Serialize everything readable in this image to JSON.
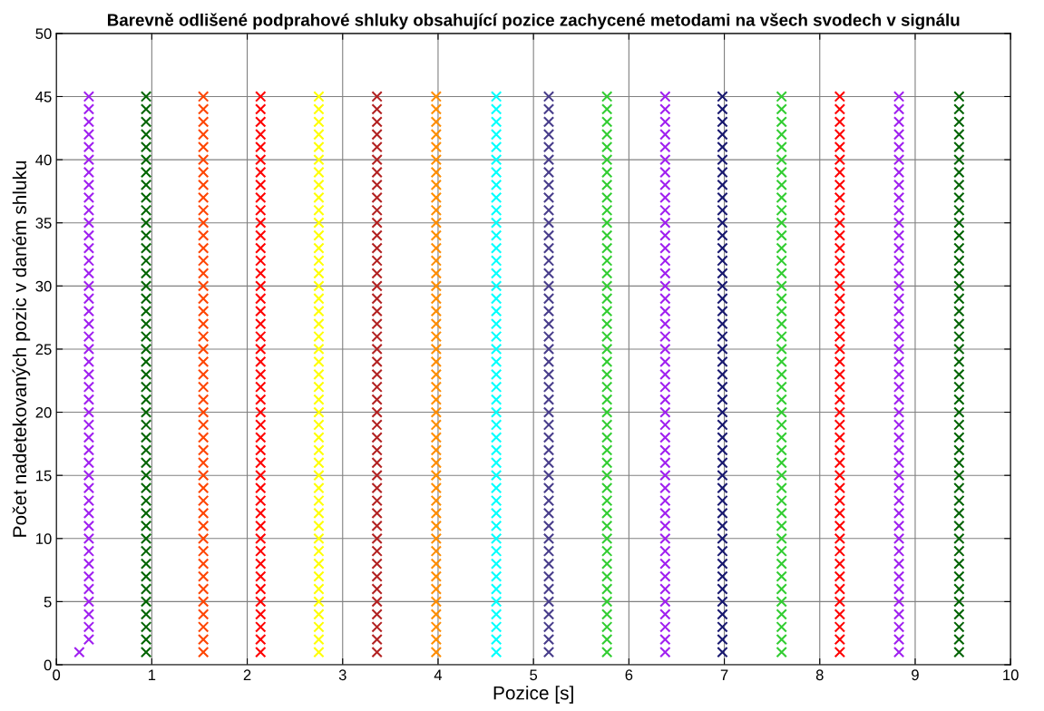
{
  "chart_data": {
    "type": "scatter",
    "title": "Barevně odlišené podprahové shluky obsahující pozice zachycené metodami na všech svodech v signálu",
    "xlabel": "Pozice [s]",
    "ylabel": "Počet nadetekovaných pozic v daném shluku",
    "xlim": [
      0,
      10
    ],
    "ylim": [
      0,
      50
    ],
    "xticks": [
      0,
      1,
      2,
      3,
      4,
      5,
      6,
      7,
      8,
      9,
      10
    ],
    "yticks": [
      0,
      5,
      10,
      15,
      20,
      25,
      30,
      35,
      40,
      45,
      50
    ],
    "grid": true,
    "marker": "cross",
    "series": [
      {
        "color": "#a020f0",
        "x": [
          0.24,
          0.34,
          0.34,
          0.34,
          0.34,
          0.34,
          0.34,
          0.34,
          0.34,
          0.34,
          0.34,
          0.34,
          0.34,
          0.34,
          0.34,
          0.34,
          0.34,
          0.34,
          0.34,
          0.34,
          0.34,
          0.34,
          0.34,
          0.34,
          0.34,
          0.34,
          0.34,
          0.34,
          0.34,
          0.34,
          0.34,
          0.34,
          0.34,
          0.34,
          0.34,
          0.34,
          0.34,
          0.34,
          0.34,
          0.34,
          0.34,
          0.34,
          0.34,
          0.34,
          0.34
        ],
        "values": [
          1,
          2,
          3,
          4,
          5,
          6,
          7,
          8,
          9,
          10,
          11,
          12,
          13,
          14,
          15,
          16,
          17,
          18,
          19,
          20,
          21,
          22,
          23,
          24,
          25,
          26,
          27,
          28,
          29,
          30,
          31,
          32,
          33,
          34,
          35,
          36,
          37,
          38,
          39,
          40,
          41,
          42,
          43,
          44,
          45
        ]
      },
      {
        "color": "#006400",
        "x": [
          0.94,
          0.94,
          0.94,
          0.94,
          0.94,
          0.94,
          0.94,
          0.94,
          0.94,
          0.94,
          0.94,
          0.94,
          0.94,
          0.94,
          0.94,
          0.94,
          0.94,
          0.94,
          0.94,
          0.94,
          0.94,
          0.94,
          0.94,
          0.94,
          0.94,
          0.94,
          0.94,
          0.94,
          0.94,
          0.94,
          0.94,
          0.94,
          0.94,
          0.94,
          0.94,
          0.94,
          0.94,
          0.94,
          0.94,
          0.94,
          0.94,
          0.94,
          0.94,
          0.94,
          0.94
        ],
        "values": [
          1,
          2,
          3,
          4,
          5,
          6,
          7,
          8,
          9,
          10,
          11,
          12,
          13,
          14,
          15,
          16,
          17,
          18,
          19,
          20,
          21,
          22,
          23,
          24,
          25,
          26,
          27,
          28,
          29,
          30,
          31,
          32,
          33,
          34,
          35,
          36,
          37,
          38,
          39,
          40,
          41,
          42,
          43,
          44,
          45
        ]
      },
      {
        "color": "#ff4500",
        "x": [
          1.54,
          1.54,
          1.54,
          1.54,
          1.54,
          1.54,
          1.54,
          1.54,
          1.54,
          1.54,
          1.54,
          1.54,
          1.54,
          1.54,
          1.54,
          1.54,
          1.54,
          1.54,
          1.54,
          1.54,
          1.54,
          1.54,
          1.54,
          1.54,
          1.54,
          1.54,
          1.54,
          1.54,
          1.54,
          1.54,
          1.54,
          1.54,
          1.54,
          1.54,
          1.54,
          1.54,
          1.54,
          1.54,
          1.54,
          1.54,
          1.54,
          1.54,
          1.54,
          1.54,
          1.54
        ],
        "values": [
          1,
          2,
          3,
          4,
          5,
          6,
          7,
          8,
          9,
          10,
          11,
          12,
          13,
          14,
          15,
          16,
          17,
          18,
          19,
          20,
          21,
          22,
          23,
          24,
          25,
          26,
          27,
          28,
          29,
          30,
          31,
          32,
          33,
          34,
          35,
          36,
          37,
          38,
          39,
          40,
          41,
          42,
          43,
          44,
          45
        ]
      },
      {
        "color": "#ff0000",
        "x": [
          2.14,
          2.14,
          2.14,
          2.14,
          2.14,
          2.14,
          2.14,
          2.14,
          2.14,
          2.14,
          2.14,
          2.14,
          2.14,
          2.14,
          2.14,
          2.14,
          2.14,
          2.14,
          2.14,
          2.14,
          2.14,
          2.14,
          2.14,
          2.14,
          2.14,
          2.14,
          2.14,
          2.14,
          2.14,
          2.14,
          2.14,
          2.14,
          2.14,
          2.14,
          2.14,
          2.14,
          2.14,
          2.14,
          2.14,
          2.14,
          2.14,
          2.14,
          2.14,
          2.14,
          2.14
        ],
        "values": [
          1,
          2,
          3,
          4,
          5,
          6,
          7,
          8,
          9,
          10,
          11,
          12,
          13,
          14,
          15,
          16,
          17,
          18,
          19,
          20,
          21,
          22,
          23,
          24,
          25,
          26,
          27,
          28,
          29,
          30,
          31,
          32,
          33,
          34,
          35,
          36,
          37,
          38,
          39,
          40,
          41,
          42,
          43,
          44,
          45
        ]
      },
      {
        "color": "#ffff00",
        "x": [
          2.75,
          2.75,
          2.75,
          2.75,
          2.75,
          2.75,
          2.75,
          2.75,
          2.75,
          2.75,
          2.75,
          2.75,
          2.75,
          2.75,
          2.75,
          2.75,
          2.75,
          2.75,
          2.75,
          2.75,
          2.75,
          2.75,
          2.75,
          2.75,
          2.75,
          2.75,
          2.75,
          2.75,
          2.75,
          2.75,
          2.75,
          2.75,
          2.75,
          2.75,
          2.75,
          2.75,
          2.75,
          2.75,
          2.75,
          2.75,
          2.75,
          2.75,
          2.75,
          2.75,
          2.75
        ],
        "values": [
          1,
          2,
          3,
          4,
          5,
          6,
          7,
          8,
          9,
          10,
          11,
          12,
          13,
          14,
          15,
          16,
          17,
          18,
          19,
          20,
          21,
          22,
          23,
          24,
          25,
          26,
          27,
          28,
          29,
          30,
          31,
          32,
          33,
          34,
          35,
          36,
          37,
          38,
          39,
          40,
          41,
          42,
          43,
          44,
          45
        ]
      },
      {
        "color": "#b22222",
        "x": [
          3.36,
          3.36,
          3.36,
          3.36,
          3.36,
          3.36,
          3.36,
          3.36,
          3.36,
          3.36,
          3.36,
          3.36,
          3.36,
          3.36,
          3.36,
          3.36,
          3.36,
          3.36,
          3.36,
          3.36,
          3.36,
          3.36,
          3.36,
          3.36,
          3.36,
          3.36,
          3.36,
          3.36,
          3.36,
          3.36,
          3.36,
          3.36,
          3.36,
          3.36,
          3.36,
          3.36,
          3.36,
          3.36,
          3.36,
          3.36,
          3.36,
          3.36,
          3.36,
          3.36,
          3.36
        ],
        "values": [
          1,
          2,
          3,
          4,
          5,
          6,
          7,
          8,
          9,
          10,
          11,
          12,
          13,
          14,
          15,
          16,
          17,
          18,
          19,
          20,
          21,
          22,
          23,
          24,
          25,
          26,
          27,
          28,
          29,
          30,
          31,
          32,
          33,
          34,
          35,
          36,
          37,
          38,
          39,
          40,
          41,
          42,
          43,
          44,
          45
        ]
      },
      {
        "color": "#ff8c00",
        "x": [
          3.98,
          3.98,
          3.98,
          3.98,
          3.98,
          3.98,
          3.98,
          3.98,
          3.98,
          3.98,
          3.98,
          3.98,
          3.98,
          3.98,
          3.98,
          3.98,
          3.98,
          3.98,
          3.98,
          3.98,
          3.98,
          3.98,
          3.98,
          3.98,
          3.98,
          3.98,
          3.98,
          3.98,
          3.98,
          3.98,
          3.98,
          3.98,
          3.98,
          3.98,
          3.98,
          3.98,
          3.98,
          3.98,
          3.98,
          3.98,
          3.98,
          3.98,
          3.98,
          3.98,
          3.98
        ],
        "values": [
          1,
          2,
          3,
          4,
          5,
          6,
          7,
          8,
          9,
          10,
          11,
          12,
          13,
          14,
          15,
          16,
          17,
          18,
          19,
          20,
          21,
          22,
          23,
          24,
          25,
          26,
          27,
          28,
          29,
          30,
          31,
          32,
          33,
          34,
          35,
          36,
          37,
          38,
          39,
          40,
          41,
          42,
          43,
          44,
          45
        ]
      },
      {
        "color": "#00ffff",
        "x": [
          4.61,
          4.61,
          4.61,
          4.61,
          4.61,
          4.61,
          4.61,
          4.61,
          4.61,
          4.61,
          4.61,
          4.61,
          4.61,
          4.61,
          4.61,
          4.61,
          4.61,
          4.61,
          4.61,
          4.61,
          4.61,
          4.61,
          4.61,
          4.61,
          4.61,
          4.61,
          4.61,
          4.61,
          4.61,
          4.61,
          4.61,
          4.61,
          4.61,
          4.61,
          4.61,
          4.61,
          4.61,
          4.61,
          4.61,
          4.61,
          4.61,
          4.61,
          4.61,
          4.61,
          4.61
        ],
        "values": [
          1,
          2,
          3,
          4,
          5,
          6,
          7,
          8,
          9,
          10,
          11,
          12,
          13,
          14,
          15,
          16,
          17,
          18,
          19,
          20,
          21,
          22,
          23,
          24,
          25,
          26,
          27,
          28,
          29,
          30,
          31,
          32,
          33,
          34,
          35,
          36,
          37,
          38,
          39,
          40,
          41,
          42,
          43,
          44,
          45
        ]
      },
      {
        "color": "#483d8b",
        "x": [
          5.16,
          5.16,
          5.16,
          5.16,
          5.16,
          5.16,
          5.16,
          5.16,
          5.16,
          5.16,
          5.16,
          5.16,
          5.16,
          5.16,
          5.16,
          5.16,
          5.16,
          5.16,
          5.16,
          5.16,
          5.16,
          5.16,
          5.16,
          5.16,
          5.16,
          5.16,
          5.16,
          5.16,
          5.16,
          5.16,
          5.16,
          5.16,
          5.16,
          5.16,
          5.16,
          5.16,
          5.16,
          5.16,
          5.16,
          5.16,
          5.16,
          5.16,
          5.16,
          5.16,
          5.16
        ],
        "values": [
          1,
          2,
          3,
          4,
          5,
          6,
          7,
          8,
          9,
          10,
          11,
          12,
          13,
          14,
          15,
          16,
          17,
          18,
          19,
          20,
          21,
          22,
          23,
          24,
          25,
          26,
          27,
          28,
          29,
          30,
          31,
          32,
          33,
          34,
          35,
          36,
          37,
          38,
          39,
          40,
          41,
          42,
          43,
          44,
          45
        ]
      },
      {
        "color": "#32cd32",
        "x": [
          5.77,
          5.77,
          5.77,
          5.77,
          5.77,
          5.77,
          5.77,
          5.77,
          5.77,
          5.77,
          5.77,
          5.77,
          5.77,
          5.77,
          5.77,
          5.77,
          5.77,
          5.77,
          5.77,
          5.77,
          5.77,
          5.77,
          5.77,
          5.77,
          5.77,
          5.77,
          5.77,
          5.77,
          5.77,
          5.77,
          5.77,
          5.77,
          5.77,
          5.77,
          5.77,
          5.77,
          5.77,
          5.77,
          5.77,
          5.77,
          5.77,
          5.77,
          5.77,
          5.77,
          5.77
        ],
        "values": [
          1,
          2,
          3,
          4,
          5,
          6,
          7,
          8,
          9,
          10,
          11,
          12,
          13,
          14,
          15,
          16,
          17,
          18,
          19,
          20,
          21,
          22,
          23,
          24,
          25,
          26,
          27,
          28,
          29,
          30,
          31,
          32,
          33,
          34,
          35,
          36,
          37,
          38,
          39,
          40,
          41,
          42,
          43,
          44,
          45
        ]
      },
      {
        "color": "#a020f0",
        "x": [
          6.38,
          6.38,
          6.38,
          6.38,
          6.38,
          6.38,
          6.38,
          6.38,
          6.38,
          6.38,
          6.38,
          6.38,
          6.38,
          6.38,
          6.38,
          6.38,
          6.38,
          6.38,
          6.38,
          6.38,
          6.38,
          6.38,
          6.38,
          6.38,
          6.38,
          6.38,
          6.38,
          6.38,
          6.38,
          6.38,
          6.38,
          6.38,
          6.38,
          6.38,
          6.38,
          6.38,
          6.38,
          6.38,
          6.38,
          6.38,
          6.38,
          6.38,
          6.38,
          6.38,
          6.38
        ],
        "values": [
          1,
          2,
          3,
          4,
          5,
          6,
          7,
          8,
          9,
          10,
          11,
          12,
          13,
          14,
          15,
          16,
          17,
          18,
          19,
          20,
          21,
          22,
          23,
          24,
          25,
          26,
          27,
          28,
          29,
          30,
          31,
          32,
          33,
          34,
          35,
          36,
          37,
          38,
          39,
          40,
          41,
          42,
          43,
          44,
          45
        ]
      },
      {
        "color": "#191970",
        "x": [
          6.98,
          6.98,
          6.98,
          6.98,
          6.98,
          6.98,
          6.98,
          6.98,
          6.98,
          6.98,
          6.98,
          6.98,
          6.98,
          6.98,
          6.98,
          6.98,
          6.98,
          6.98,
          6.98,
          6.98,
          6.98,
          6.98,
          6.98,
          6.98,
          6.98,
          6.98,
          6.98,
          6.98,
          6.98,
          6.98,
          6.98,
          6.98,
          6.98,
          6.98,
          6.98,
          6.98,
          6.98,
          6.98,
          6.98,
          6.98,
          6.98,
          6.98,
          6.98,
          6.98,
          6.98
        ],
        "values": [
          1,
          2,
          3,
          4,
          5,
          6,
          7,
          8,
          9,
          10,
          11,
          12,
          13,
          14,
          15,
          16,
          17,
          18,
          19,
          20,
          21,
          22,
          23,
          24,
          25,
          26,
          27,
          28,
          29,
          30,
          31,
          32,
          33,
          34,
          35,
          36,
          37,
          38,
          39,
          40,
          41,
          42,
          43,
          44,
          45
        ]
      },
      {
        "color": "#32cd32",
        "x": [
          7.6,
          7.6,
          7.6,
          7.6,
          7.6,
          7.6,
          7.6,
          7.6,
          7.6,
          7.6,
          7.6,
          7.6,
          7.6,
          7.6,
          7.6,
          7.6,
          7.6,
          7.6,
          7.6,
          7.6,
          7.6,
          7.6,
          7.6,
          7.6,
          7.6,
          7.6,
          7.6,
          7.6,
          7.6,
          7.6,
          7.6,
          7.6,
          7.6,
          7.6,
          7.6,
          7.6,
          7.6,
          7.6,
          7.6,
          7.6,
          7.6,
          7.6,
          7.6,
          7.6,
          7.6
        ],
        "values": [
          1,
          2,
          3,
          4,
          5,
          6,
          7,
          8,
          9,
          10,
          11,
          12,
          13,
          14,
          15,
          16,
          17,
          18,
          19,
          20,
          21,
          22,
          23,
          24,
          25,
          26,
          27,
          28,
          29,
          30,
          31,
          32,
          33,
          34,
          35,
          36,
          37,
          38,
          39,
          40,
          41,
          42,
          43,
          44,
          45
        ]
      },
      {
        "color": "#ff0000",
        "x": [
          8.21,
          8.21,
          8.21,
          8.21,
          8.21,
          8.21,
          8.21,
          8.21,
          8.21,
          8.21,
          8.21,
          8.21,
          8.21,
          8.21,
          8.21,
          8.21,
          8.21,
          8.21,
          8.21,
          8.21,
          8.21,
          8.21,
          8.21,
          8.21,
          8.21,
          8.21,
          8.21,
          8.21,
          8.21,
          8.21,
          8.21,
          8.21,
          8.21,
          8.21,
          8.21,
          8.21,
          8.21,
          8.21,
          8.21,
          8.21,
          8.21,
          8.21,
          8.21,
          8.21,
          8.21
        ],
        "values": [
          1,
          2,
          3,
          4,
          5,
          6,
          7,
          8,
          9,
          10,
          11,
          12,
          13,
          14,
          15,
          16,
          17,
          18,
          19,
          20,
          21,
          22,
          23,
          24,
          25,
          26,
          27,
          28,
          29,
          30,
          31,
          32,
          33,
          34,
          35,
          36,
          37,
          38,
          39,
          40,
          41,
          42,
          43,
          44,
          45
        ]
      },
      {
        "color": "#a020f0",
        "x": [
          8.83,
          8.83,
          8.83,
          8.83,
          8.83,
          8.83,
          8.83,
          8.83,
          8.83,
          8.83,
          8.83,
          8.83,
          8.83,
          8.83,
          8.83,
          8.83,
          8.83,
          8.83,
          8.83,
          8.83,
          8.83,
          8.83,
          8.83,
          8.83,
          8.83,
          8.83,
          8.83,
          8.83,
          8.83,
          8.83,
          8.83,
          8.83,
          8.83,
          8.83,
          8.83,
          8.83,
          8.83,
          8.83,
          8.83,
          8.83,
          8.83,
          8.83,
          8.83,
          8.83,
          8.83
        ],
        "values": [
          1,
          2,
          3,
          4,
          5,
          6,
          7,
          8,
          9,
          10,
          11,
          12,
          13,
          14,
          15,
          16,
          17,
          18,
          19,
          20,
          21,
          22,
          23,
          24,
          25,
          26,
          27,
          28,
          29,
          30,
          31,
          32,
          33,
          34,
          35,
          36,
          37,
          38,
          39,
          40,
          41,
          42,
          43,
          44,
          45
        ]
      },
      {
        "color": "#006400",
        "x": [
          9.46,
          9.46,
          9.46,
          9.46,
          9.46,
          9.46,
          9.46,
          9.46,
          9.46,
          9.46,
          9.46,
          9.46,
          9.46,
          9.46,
          9.46,
          9.46,
          9.46,
          9.46,
          9.46,
          9.46,
          9.46,
          9.46,
          9.46,
          9.46,
          9.46,
          9.46,
          9.46,
          9.46,
          9.46,
          9.46,
          9.46,
          9.46,
          9.46,
          9.46,
          9.46,
          9.46,
          9.46,
          9.46,
          9.46,
          9.46,
          9.46,
          9.46,
          9.46,
          9.46,
          9.46
        ],
        "values": [
          1,
          2,
          3,
          4,
          5,
          6,
          7,
          8,
          9,
          10,
          11,
          12,
          13,
          14,
          15,
          16,
          17,
          18,
          19,
          20,
          21,
          22,
          23,
          24,
          25,
          26,
          27,
          28,
          29,
          30,
          31,
          32,
          33,
          34,
          35,
          36,
          37,
          38,
          39,
          40,
          41,
          42,
          43,
          44,
          45
        ]
      }
    ]
  }
}
